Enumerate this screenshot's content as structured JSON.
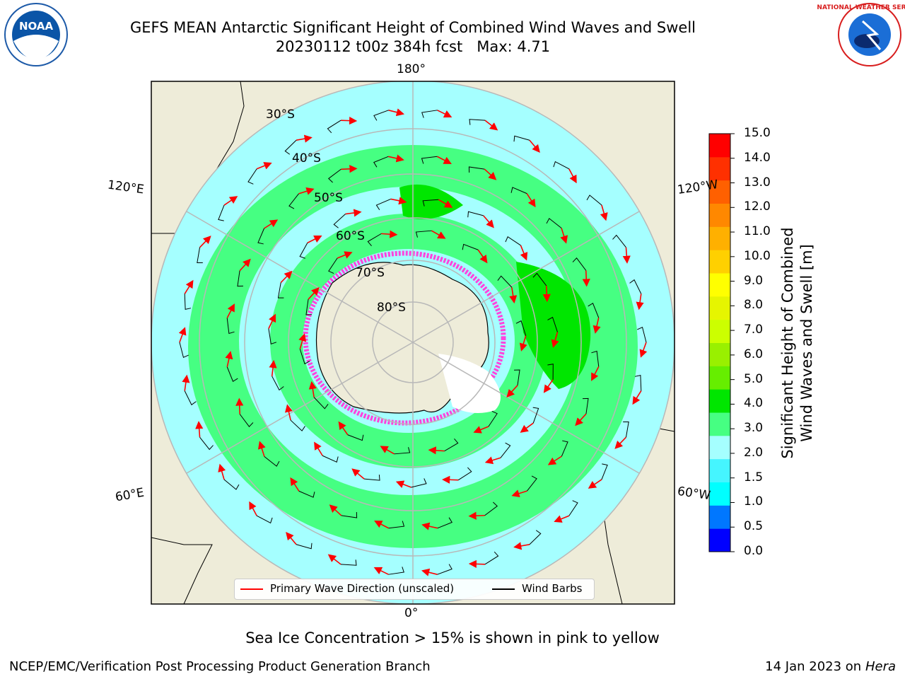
{
  "title": {
    "line1": "GEFS MEAN Antarctic Significant Height of Combined Wind Waves and Swell",
    "line2": "20230112 t00z 384h fcst   Max: 4.71"
  },
  "map": {
    "projection": "south-polar-stereographic",
    "longitude_labels": [
      "180°",
      "120°E",
      "120°W",
      "60°E",
      "60°W",
      "0°"
    ],
    "latitude_labels": [
      "30°S",
      "40°S",
      "50°S",
      "60°S",
      "70°S",
      "80°S"
    ],
    "colors": {
      "land": "#eeecd9",
      "ocean_high": "#46ff82",
      "ocean_mid": "#a5ffff",
      "ocean_low": "#45f5ff",
      "wave_max": "#00e600",
      "sea_ice": "#ff44dd",
      "graticule": "#b8b8b8",
      "wave_arrow": "#ff0000",
      "wind_barb": "#000000"
    }
  },
  "legend": {
    "wave_label": "Primary Wave Direction (unscaled)",
    "barb_label": "Wind Barbs"
  },
  "colorbar": {
    "title_line1": "Significant Height of Combined",
    "title_line2": "Wind Waves and Swell [m]",
    "ticks": [
      "15.0",
      "14.0",
      "13.0",
      "12.0",
      "11.0",
      "10.0",
      "9.0",
      "8.0",
      "7.0",
      "6.0",
      "5.0",
      "4.0",
      "3.0",
      "2.0",
      "1.5",
      "1.0",
      "0.5",
      "0.0"
    ],
    "colors": [
      "#0000ff",
      "#0077ff",
      "#00ffff",
      "#45f5ff",
      "#a5ffff",
      "#46ff82",
      "#00e600",
      "#66ee00",
      "#99f000",
      "#ccff00",
      "#e6f500",
      "#ffff00",
      "#ffd000",
      "#ffb000",
      "#ff8800",
      "#ff6000",
      "#ff3000",
      "#ff0000"
    ]
  },
  "footnote": "Sea Ice Concentration > 15% is shown in pink to yellow",
  "footer": {
    "left": "NCEP/EMC/Verification Post Processing Product Generation Branch",
    "right_prefix": "14 Jan 2023 on ",
    "right_host": "Hera"
  },
  "logos": {
    "noaa_text": "NOAA",
    "nws_text": "NATIONAL WEATHER SERVICE"
  }
}
